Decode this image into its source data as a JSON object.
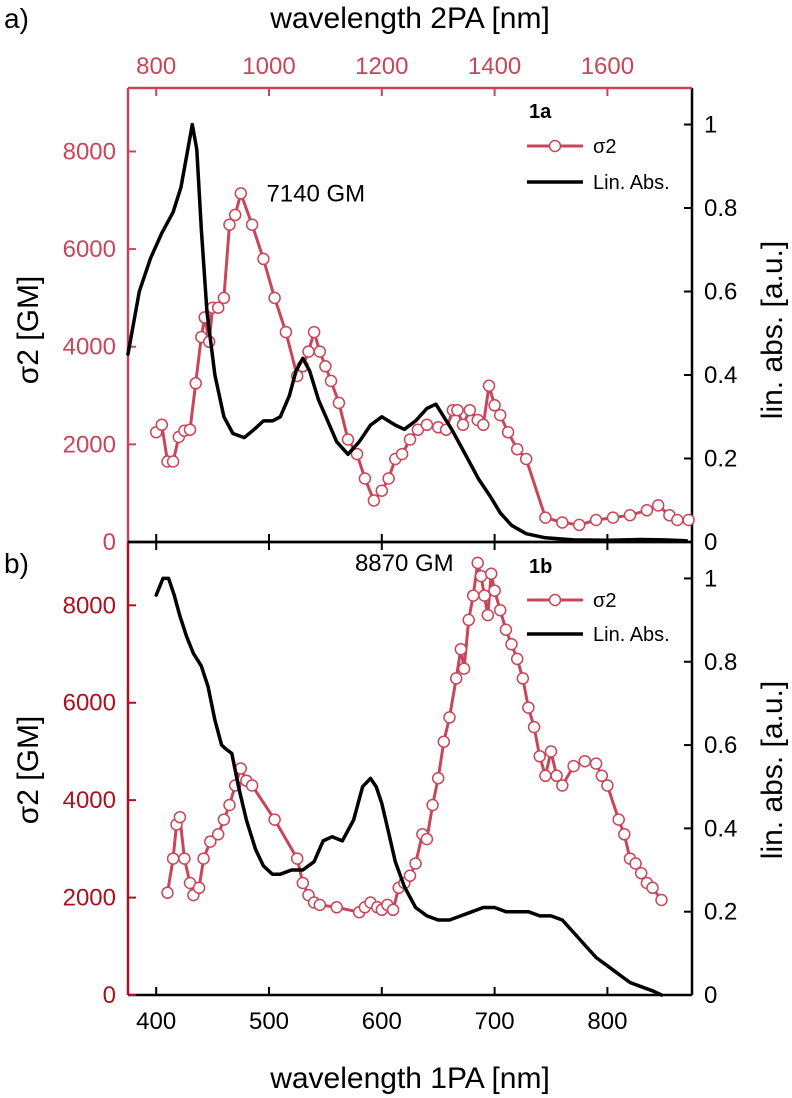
{
  "colors": {
    "sigma2_a": "#c8465a",
    "sigma2_b": "#c8465a",
    "axis_a_left": "#c8465a",
    "axis_b_left": "#a8121e",
    "top_axis": "#c8465a",
    "lin_abs": "#000000",
    "marker_fill": "#ffffff"
  },
  "top_axis": {
    "label": "wavelength 2PA  [nm]",
    "ticks": [
      800,
      1000,
      1200,
      1400,
      1600
    ],
    "tick_labels": [
      "800",
      "1000",
      "1200",
      "1400",
      "1600"
    ],
    "range": [
      750,
      1750
    ]
  },
  "bottom_axis": {
    "label": "wavelength 1PA  [nm]",
    "ticks": [
      400,
      500,
      600,
      700,
      800
    ],
    "tick_labels": [
      "400",
      "500",
      "600",
      "700",
      "800"
    ],
    "range": [
      375,
      875
    ]
  },
  "chart_data": [
    {
      "panel": "a)",
      "tag": "1a",
      "type": "line",
      "x_range": [
        375,
        875
      ],
      "ylabel_left": "σ2 [GM]",
      "ylabel_right": "lin. abs. [a.u.]",
      "ylim_left": [
        0,
        9300
      ],
      "ylim_right": [
        0,
        1.0875
      ],
      "left_ticks": [
        0,
        2000,
        4000,
        6000,
        8000
      ],
      "left_tick_labels": [
        "0",
        "2000",
        "4000",
        "6000",
        "8000"
      ],
      "right_ticks": [
        0,
        0.2,
        0.4,
        0.6,
        0.8,
        1
      ],
      "right_tick_labels": [
        "0",
        "0.2",
        "0.4",
        "0.6",
        "0.8",
        "1"
      ],
      "legend": {
        "position": "top-right",
        "entries": [
          "σ2",
          "Lin. Abs."
        ]
      },
      "peak_label": {
        "text": "7140 GM",
        "x": 480,
        "y": 7140
      },
      "series": [
        {
          "name": "σ2",
          "axis": "left",
          "style": "line+open-circles",
          "points": [
            [
              400,
              2250
            ],
            [
              405,
              2400
            ],
            [
              410,
              1650
            ],
            [
              415,
              1650
            ],
            [
              420,
              2150
            ],
            [
              425,
              2280
            ],
            [
              430,
              2300
            ],
            [
              435,
              3250
            ],
            [
              440,
              4200
            ],
            [
              443,
              4600
            ],
            [
              447,
              4100
            ],
            [
              450,
              4800
            ],
            [
              455,
              4800
            ],
            [
              460,
              5000
            ],
            [
              465,
              6500
            ],
            [
              470,
              6700
            ],
            [
              475,
              7140
            ],
            [
              485,
              6500
            ],
            [
              495,
              5800
            ],
            [
              505,
              5000
            ],
            [
              515,
              4300
            ],
            [
              525,
              3400
            ],
            [
              530,
              3600
            ],
            [
              535,
              3900
            ],
            [
              540,
              4300
            ],
            [
              545,
              3900
            ],
            [
              550,
              3600
            ],
            [
              555,
              3300
            ],
            [
              562,
              2850
            ],
            [
              570,
              2100
            ],
            [
              578,
              1800
            ],
            [
              585,
              1300
            ],
            [
              593,
              850
            ],
            [
              600,
              1050
            ],
            [
              606,
              1300
            ],
            [
              612,
              1700
            ],
            [
              618,
              1800
            ],
            [
              625,
              2100
            ],
            [
              632,
              2300
            ],
            [
              640,
              2400
            ],
            [
              650,
              2350
            ],
            [
              657,
              2300
            ],
            [
              663,
              2700
            ],
            [
              667,
              2700
            ],
            [
              672,
              2400
            ],
            [
              678,
              2700
            ],
            [
              685,
              2500
            ],
            [
              690,
              2400
            ],
            [
              695,
              3200
            ],
            [
              700,
              2800
            ],
            [
              705,
              2600
            ],
            [
              712,
              2250
            ],
            [
              720,
              1900
            ],
            [
              728,
              1700
            ],
            [
              745,
              500
            ],
            [
              760,
              400
            ],
            [
              775,
              350
            ],
            [
              790,
              450
            ],
            [
              805,
              500
            ],
            [
              820,
              550
            ],
            [
              835,
              650
            ],
            [
              845,
              750
            ],
            [
              855,
              550
            ],
            [
              862,
              450
            ],
            [
              872,
              450
            ]
          ]
        },
        {
          "name": "Lin. Abs.",
          "axis": "right",
          "style": "line",
          "points": [
            [
              375,
              0.45
            ],
            [
              385,
              0.6
            ],
            [
              395,
              0.68
            ],
            [
              405,
              0.74
            ],
            [
              415,
              0.79
            ],
            [
              422,
              0.85
            ],
            [
              428,
              0.94
            ],
            [
              432,
              1.0
            ],
            [
              436,
              0.94
            ],
            [
              440,
              0.75
            ],
            [
              445,
              0.55
            ],
            [
              452,
              0.4
            ],
            [
              460,
              0.3
            ],
            [
              468,
              0.26
            ],
            [
              478,
              0.25
            ],
            [
              487,
              0.27
            ],
            [
              495,
              0.29
            ],
            [
              503,
              0.29
            ],
            [
              510,
              0.3
            ],
            [
              518,
              0.35
            ],
            [
              524,
              0.41
            ],
            [
              530,
              0.44
            ],
            [
              536,
              0.41
            ],
            [
              544,
              0.34
            ],
            [
              552,
              0.29
            ],
            [
              560,
              0.24
            ],
            [
              570,
              0.21
            ],
            [
              580,
              0.24
            ],
            [
              590,
              0.28
            ],
            [
              600,
              0.3
            ],
            [
              612,
              0.28
            ],
            [
              620,
              0.27
            ],
            [
              630,
              0.29
            ],
            [
              640,
              0.32
            ],
            [
              648,
              0.33
            ],
            [
              655,
              0.3
            ],
            [
              662,
              0.27
            ],
            [
              670,
              0.23
            ],
            [
              678,
              0.19
            ],
            [
              686,
              0.15
            ],
            [
              696,
              0.11
            ],
            [
              705,
              0.07
            ],
            [
              715,
              0.04
            ],
            [
              728,
              0.02
            ],
            [
              745,
              0.01
            ],
            [
              770,
              0.005
            ],
            [
              800,
              0.004
            ],
            [
              830,
              0.006
            ],
            [
              850,
              0.005
            ],
            [
              870,
              0.003
            ]
          ]
        }
      ]
    },
    {
      "panel": "b)",
      "tag": "1b",
      "type": "line",
      "x_range": [
        375,
        875
      ],
      "xlabel": "wavelength 1PA  [nm]",
      "ylabel_left": "σ2 [GM]",
      "ylabel_right": "lin. abs. [a.u.]",
      "ylim_left": [
        0,
        9300
      ],
      "ylim_right": [
        0,
        1.0875
      ],
      "left_ticks": [
        0,
        2000,
        4000,
        6000,
        8000
      ],
      "left_tick_labels": [
        "0",
        "2000",
        "4000",
        "6000",
        "8000"
      ],
      "right_ticks": [
        0,
        0.2,
        0.4,
        0.6,
        0.8,
        1
      ],
      "right_tick_labels": [
        "0",
        "0.2",
        "0.4",
        "0.6",
        "0.8",
        "1"
      ],
      "legend": {
        "position": "top-right",
        "entries": [
          "σ2",
          "Lin. Abs."
        ]
      },
      "peak_label": {
        "text": "8870 GM",
        "x": 685,
        "y": 8870
      },
      "series": [
        {
          "name": "σ2",
          "axis": "left",
          "style": "line+open-circles",
          "points": [
            [
              410,
              2100
            ],
            [
              415,
              2800
            ],
            [
              418,
              3500
            ],
            [
              421,
              3650
            ],
            [
              425,
              2800
            ],
            [
              430,
              2300
            ],
            [
              433,
              2050
            ],
            [
              438,
              2200
            ],
            [
              442,
              2800
            ],
            [
              448,
              3150
            ],
            [
              455,
              3300
            ],
            [
              460,
              3600
            ],
            [
              465,
              3900
            ],
            [
              470,
              4300
            ],
            [
              475,
              4650
            ],
            [
              480,
              4400
            ],
            [
              485,
              4300
            ],
            [
              505,
              3600
            ],
            [
              525,
              2800
            ],
            [
              530,
              2300
            ],
            [
              535,
              2050
            ],
            [
              540,
              1900
            ],
            [
              545,
              1850
            ],
            [
              560,
              1800
            ],
            [
              580,
              1700
            ],
            [
              585,
              1800
            ],
            [
              590,
              1900
            ],
            [
              596,
              1800
            ],
            [
              600,
              1750
            ],
            [
              605,
              1850
            ],
            [
              610,
              1750
            ],
            [
              615,
              2200
            ],
            [
              620,
              2300
            ],
            [
              625,
              2450
            ],
            [
              630,
              2700
            ],
            [
              636,
              3300
            ],
            [
              640,
              3200
            ],
            [
              645,
              3900
            ],
            [
              650,
              4450
            ],
            [
              655,
              5200
            ],
            [
              660,
              5700
            ],
            [
              666,
              6500
            ],
            [
              670,
              7100
            ],
            [
              673,
              6700
            ],
            [
              677,
              7700
            ],
            [
              681,
              8200
            ],
            [
              685,
              8870
            ],
            [
              688,
              8600
            ],
            [
              691,
              8200
            ],
            [
              694,
              7800
            ],
            [
              697,
              8650
            ],
            [
              700,
              8300
            ],
            [
              705,
              7900
            ],
            [
              710,
              7500
            ],
            [
              715,
              7200
            ],
            [
              720,
              6900
            ],
            [
              725,
              6500
            ],
            [
              730,
              5900
            ],
            [
              735,
              5500
            ],
            [
              740,
              4900
            ],
            [
              745,
              4500
            ],
            [
              750,
              5000
            ],
            [
              755,
              4500
            ],
            [
              760,
              4300
            ],
            [
              770,
              4700
            ],
            [
              780,
              4800
            ],
            [
              790,
              4750
            ],
            [
              795,
              4500
            ],
            [
              800,
              4300
            ],
            [
              810,
              3600
            ],
            [
              815,
              3300
            ],
            [
              820,
              2800
            ],
            [
              825,
              2700
            ],
            [
              830,
              2500
            ],
            [
              835,
              2300
            ],
            [
              840,
              2200
            ],
            [
              848,
              1950
            ]
          ]
        },
        {
          "name": "Lin. Abs.",
          "axis": "right",
          "style": "line",
          "points": [
            [
              400,
              0.96
            ],
            [
              406,
              1.0
            ],
            [
              411,
              1.0
            ],
            [
              416,
              0.96
            ],
            [
              421,
              0.91
            ],
            [
              427,
              0.86
            ],
            [
              433,
              0.82
            ],
            [
              440,
              0.79
            ],
            [
              446,
              0.74
            ],
            [
              452,
              0.66
            ],
            [
              458,
              0.6
            ],
            [
              462,
              0.59
            ],
            [
              467,
              0.58
            ],
            [
              473,
              0.5
            ],
            [
              480,
              0.42
            ],
            [
              488,
              0.35
            ],
            [
              495,
              0.31
            ],
            [
              503,
              0.29
            ],
            [
              510,
              0.29
            ],
            [
              520,
              0.3
            ],
            [
              530,
              0.3
            ],
            [
              540,
              0.32
            ],
            [
              548,
              0.37
            ],
            [
              556,
              0.38
            ],
            [
              565,
              0.37
            ],
            [
              575,
              0.42
            ],
            [
              583,
              0.5
            ],
            [
              590,
              0.52
            ],
            [
              595,
              0.5
            ],
            [
              600,
              0.46
            ],
            [
              606,
              0.39
            ],
            [
              612,
              0.32
            ],
            [
              620,
              0.26
            ],
            [
              630,
              0.21
            ],
            [
              640,
              0.19
            ],
            [
              650,
              0.18
            ],
            [
              660,
              0.18
            ],
            [
              670,
              0.19
            ],
            [
              680,
              0.2
            ],
            [
              690,
              0.21
            ],
            [
              700,
              0.21
            ],
            [
              710,
              0.2
            ],
            [
              720,
              0.2
            ],
            [
              730,
              0.2
            ],
            [
              740,
              0.19
            ],
            [
              750,
              0.19
            ],
            [
              760,
              0.18
            ],
            [
              770,
              0.15
            ],
            [
              780,
              0.12
            ],
            [
              790,
              0.09
            ],
            [
              800,
              0.07
            ],
            [
              810,
              0.05
            ],
            [
              820,
              0.03
            ],
            [
              830,
              0.02
            ],
            [
              840,
              0.01
            ],
            [
              848,
              0.0
            ]
          ]
        }
      ]
    }
  ]
}
